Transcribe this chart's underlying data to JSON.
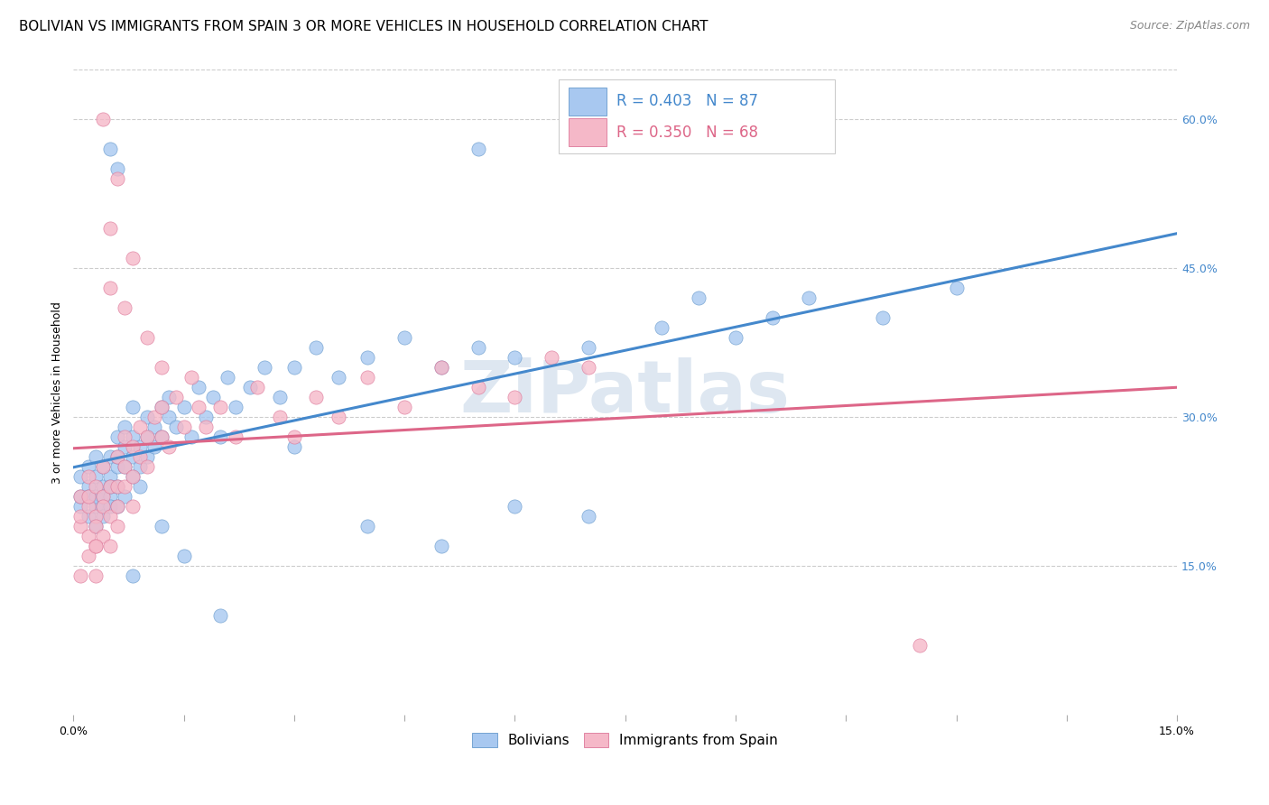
{
  "title": "BOLIVIAN VS IMMIGRANTS FROM SPAIN 3 OR MORE VEHICLES IN HOUSEHOLD CORRELATION CHART",
  "source": "Source: ZipAtlas.com",
  "ylabel": "3 or more Vehicles in Household",
  "xlim": [
    0.0,
    0.15
  ],
  "ylim": [
    0.0,
    0.65
  ],
  "yticks_right": [
    0.15,
    0.3,
    0.45,
    0.6
  ],
  "yticklabels_right": [
    "15.0%",
    "30.0%",
    "45.0%",
    "60.0%"
  ],
  "legend_R_blue": "R = 0.403",
  "legend_N_blue": "N = 87",
  "legend_R_pink": "R = 0.350",
  "legend_N_pink": "N = 68",
  "blue_color": "#A8C8F0",
  "pink_color": "#F5B8C8",
  "blue_edge_color": "#6699CC",
  "pink_edge_color": "#DD7799",
  "blue_line_color": "#4488CC",
  "pink_line_color": "#DD6688",
  "blue_text_color": "#4488CC",
  "pink_text_color": "#DD6688",
  "watermark": "ZiPatlas",
  "watermark_color": "#C8D8E8",
  "background_color": "#FFFFFF",
  "grid_color": "#CCCCCC",
  "title_fontsize": 11,
  "axis_label_fontsize": 9,
  "tick_fontsize": 9,
  "source_fontsize": 9,
  "legend_fontsize": 12,
  "blue_scatter_x": [
    0.001,
    0.001,
    0.001,
    0.002,
    0.002,
    0.002,
    0.002,
    0.003,
    0.003,
    0.003,
    0.003,
    0.003,
    0.004,
    0.004,
    0.004,
    0.004,
    0.004,
    0.005,
    0.005,
    0.005,
    0.005,
    0.005,
    0.006,
    0.006,
    0.006,
    0.006,
    0.006,
    0.007,
    0.007,
    0.007,
    0.007,
    0.008,
    0.008,
    0.008,
    0.008,
    0.009,
    0.009,
    0.009,
    0.01,
    0.01,
    0.01,
    0.011,
    0.011,
    0.012,
    0.012,
    0.013,
    0.013,
    0.014,
    0.015,
    0.016,
    0.017,
    0.018,
    0.019,
    0.02,
    0.021,
    0.022,
    0.024,
    0.026,
    0.028,
    0.03,
    0.033,
    0.036,
    0.04,
    0.045,
    0.05,
    0.055,
    0.06,
    0.07,
    0.08,
    0.085,
    0.09,
    0.095,
    0.1,
    0.11,
    0.12,
    0.055,
    0.005,
    0.03,
    0.04,
    0.05,
    0.06,
    0.07,
    0.006,
    0.008,
    0.012,
    0.015,
    0.02
  ],
  "blue_scatter_y": [
    0.21,
    0.24,
    0.22,
    0.2,
    0.23,
    0.25,
    0.22,
    0.21,
    0.24,
    0.22,
    0.19,
    0.26,
    0.23,
    0.21,
    0.25,
    0.22,
    0.2,
    0.22,
    0.24,
    0.26,
    0.21,
    0.23,
    0.25,
    0.28,
    0.23,
    0.21,
    0.26,
    0.27,
    0.25,
    0.22,
    0.29,
    0.26,
    0.28,
    0.24,
    0.31,
    0.27,
    0.25,
    0.23,
    0.28,
    0.3,
    0.26,
    0.29,
    0.27,
    0.31,
    0.28,
    0.3,
    0.32,
    0.29,
    0.31,
    0.28,
    0.33,
    0.3,
    0.32,
    0.28,
    0.34,
    0.31,
    0.33,
    0.35,
    0.32,
    0.35,
    0.37,
    0.34,
    0.36,
    0.38,
    0.35,
    0.37,
    0.36,
    0.37,
    0.39,
    0.42,
    0.38,
    0.4,
    0.42,
    0.4,
    0.43,
    0.57,
    0.57,
    0.27,
    0.19,
    0.17,
    0.21,
    0.2,
    0.55,
    0.14,
    0.19,
    0.16,
    0.1
  ],
  "pink_scatter_x": [
    0.001,
    0.001,
    0.001,
    0.002,
    0.002,
    0.002,
    0.002,
    0.003,
    0.003,
    0.003,
    0.003,
    0.004,
    0.004,
    0.004,
    0.004,
    0.005,
    0.005,
    0.005,
    0.006,
    0.006,
    0.006,
    0.006,
    0.007,
    0.007,
    0.007,
    0.008,
    0.008,
    0.008,
    0.009,
    0.009,
    0.01,
    0.01,
    0.011,
    0.012,
    0.012,
    0.013,
    0.014,
    0.015,
    0.016,
    0.017,
    0.018,
    0.02,
    0.022,
    0.025,
    0.028,
    0.03,
    0.033,
    0.036,
    0.04,
    0.045,
    0.05,
    0.055,
    0.06,
    0.065,
    0.07,
    0.001,
    0.002,
    0.003,
    0.003,
    0.004,
    0.005,
    0.005,
    0.006,
    0.007,
    0.008,
    0.01,
    0.012,
    0.115
  ],
  "pink_scatter_y": [
    0.19,
    0.22,
    0.2,
    0.18,
    0.21,
    0.24,
    0.22,
    0.2,
    0.23,
    0.19,
    0.17,
    0.22,
    0.25,
    0.21,
    0.18,
    0.23,
    0.2,
    0.17,
    0.26,
    0.23,
    0.21,
    0.19,
    0.25,
    0.28,
    0.23,
    0.27,
    0.24,
    0.21,
    0.29,
    0.26,
    0.28,
    0.25,
    0.3,
    0.31,
    0.28,
    0.27,
    0.32,
    0.29,
    0.34,
    0.31,
    0.29,
    0.31,
    0.28,
    0.33,
    0.3,
    0.28,
    0.32,
    0.3,
    0.34,
    0.31,
    0.35,
    0.33,
    0.32,
    0.36,
    0.35,
    0.14,
    0.16,
    0.14,
    0.17,
    0.6,
    0.49,
    0.43,
    0.54,
    0.41,
    0.46,
    0.38,
    0.35,
    0.07
  ]
}
